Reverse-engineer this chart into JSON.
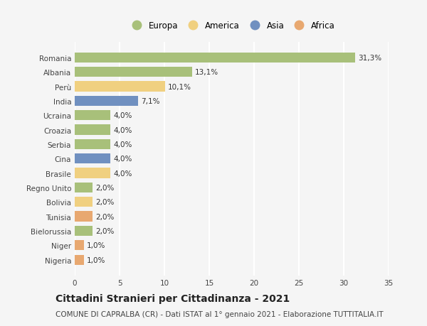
{
  "countries": [
    "Romania",
    "Albania",
    "Perù",
    "India",
    "Ucraina",
    "Croazia",
    "Serbia",
    "Cina",
    "Brasile",
    "Regno Unito",
    "Bolivia",
    "Tunisia",
    "Bielorussia",
    "Niger",
    "Nigeria"
  ],
  "values": [
    31.3,
    13.1,
    10.1,
    7.1,
    4.0,
    4.0,
    4.0,
    4.0,
    4.0,
    2.0,
    2.0,
    2.0,
    2.0,
    1.0,
    1.0
  ],
  "labels": [
    "31,3%",
    "13,1%",
    "10,1%",
    "7,1%",
    "4,0%",
    "4,0%",
    "4,0%",
    "4,0%",
    "4,0%",
    "2,0%",
    "2,0%",
    "2,0%",
    "2,0%",
    "1,0%",
    "1,0%"
  ],
  "continents": [
    "Europa",
    "Europa",
    "America",
    "Asia",
    "Europa",
    "Europa",
    "Europa",
    "Asia",
    "America",
    "Europa",
    "America",
    "Africa",
    "Europa",
    "Africa",
    "Africa"
  ],
  "colors": {
    "Europa": "#a8c07a",
    "America": "#f0d080",
    "Asia": "#7090c0",
    "Africa": "#e8a870"
  },
  "xlim": [
    0,
    35
  ],
  "xticks": [
    0,
    5,
    10,
    15,
    20,
    25,
    30,
    35
  ],
  "title": "Cittadini Stranieri per Cittadinanza - 2021",
  "subtitle": "COMUNE DI CAPRALBA (CR) - Dati ISTAT al 1° gennaio 2021 - Elaborazione TUTTITALIA.IT",
  "background_color": "#f5f5f5",
  "grid_color": "#ffffff",
  "bar_height": 0.7,
  "label_fontsize": 7.5,
  "tick_fontsize": 7.5,
  "title_fontsize": 10,
  "subtitle_fontsize": 7.5
}
